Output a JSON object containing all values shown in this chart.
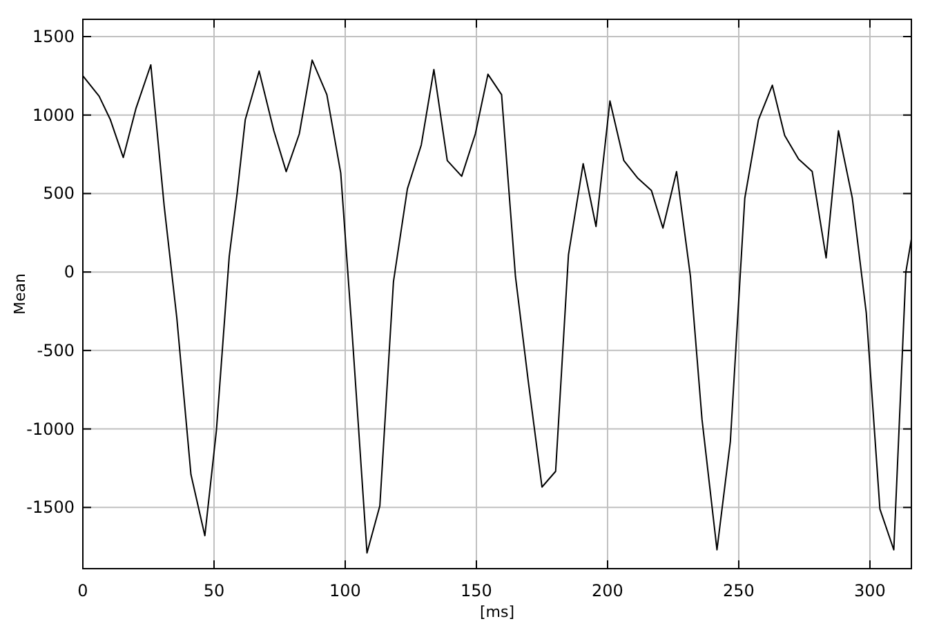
{
  "chart_data": {
    "type": "line",
    "xlabel": "[ms]",
    "ylabel": "Mean",
    "x": [
      0,
      6.2,
      10.5,
      15.4,
      20.2,
      25.9,
      31,
      35.8,
      41.2,
      46.5,
      50.9,
      55.8,
      58.8,
      61.9,
      67.2,
      72.8,
      77.5,
      82.5,
      87.4,
      93,
      98.3,
      102.6,
      108.3,
      113.2,
      118.4,
      123.7,
      129,
      133.8,
      138.9,
      144.4,
      149.6,
      154.4,
      159.6,
      164.9,
      169.8,
      175,
      180.2,
      185.1,
      190.7,
      195.6,
      200.9,
      206.2,
      211.4,
      216.7,
      221.1,
      226.3,
      231.6,
      236,
      241.7,
      246.8,
      252.3,
      257.5,
      262.8,
      267.5,
      272.8,
      278,
      283.3,
      288,
      293.3,
      298.6,
      303.8,
      309.1,
      313.7,
      315.8
    ],
    "series": [
      {
        "color": "#000000",
        "values": [
          1250,
          1120,
          970,
          730,
          1040,
          1320,
          420,
          -290,
          -1290,
          -1680,
          -1010,
          100,
          500,
          970,
          1280,
          900,
          640,
          880,
          1350,
          1130,
          630,
          -380,
          -1790,
          -1490,
          -60,
          530,
          810,
          1290,
          710,
          610,
          880,
          1260,
          1130,
          -30,
          -700,
          -1370,
          -1270,
          110,
          690,
          290,
          1090,
          710,
          600,
          520,
          280,
          640,
          -30,
          -940,
          -1770,
          -1080,
          470,
          970,
          1190,
          870,
          720,
          640,
          90,
          900,
          470,
          -260,
          -1510,
          -1770,
          0,
          210
        ]
      }
    ],
    "xlim": [
      0,
      315.8
    ],
    "ylim": [
      -1890,
      1610
    ],
    "xticks": [
      0,
      50,
      100,
      150,
      200,
      250,
      300
    ],
    "yticks": [
      -1500,
      -1000,
      -500,
      0,
      500,
      1000,
      1500
    ],
    "grid": true,
    "line_style": "solid",
    "marker": "none"
  }
}
